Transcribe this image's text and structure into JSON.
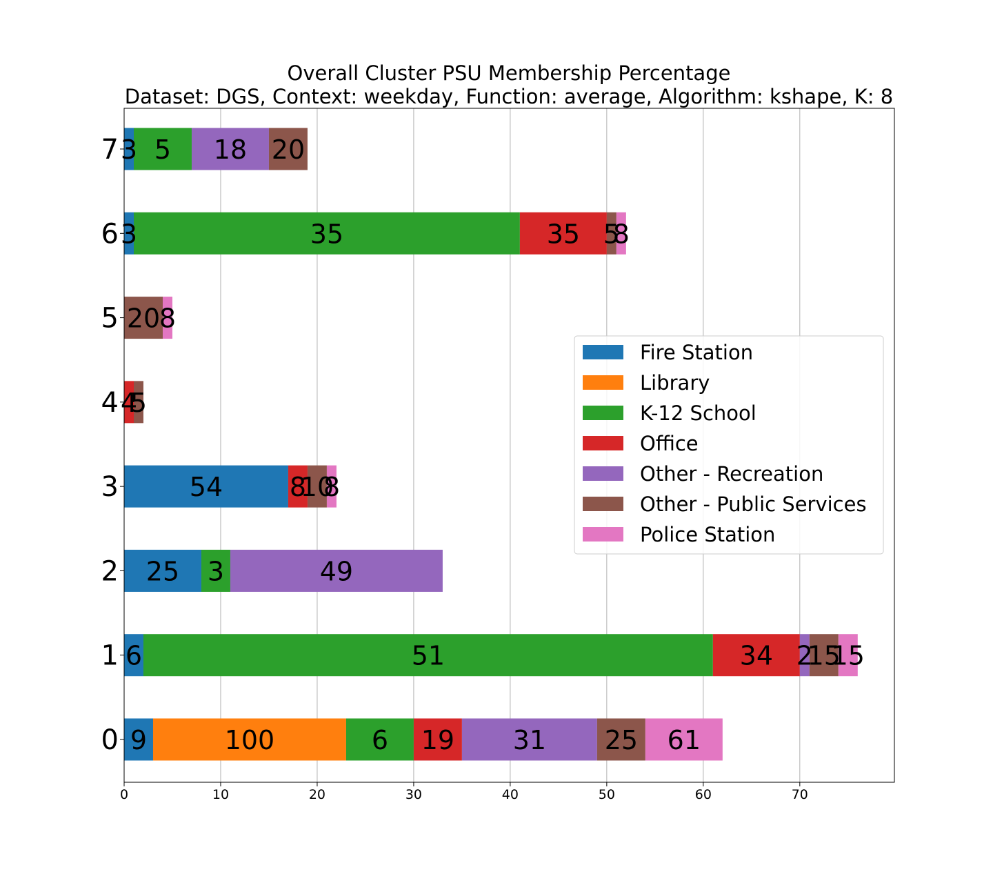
{
  "chart_data": {
    "type": "bar",
    "orientation": "horizontal",
    "stacked": true,
    "title": "Overall Cluster  PSU Membership Percentage",
    "subtitle": "Dataset: DGS, Context: weekday, Function: average, Algorithm: kshape, K: 8",
    "xlabel": "",
    "ylabel": "",
    "xlim": [
      0,
      79.8
    ],
    "xticks": [
      "0",
      "10",
      "20",
      "30",
      "40",
      "50",
      "60",
      "70"
    ],
    "grid": "x",
    "legend_position": "center-right",
    "categories": [
      "0",
      "1",
      "2",
      "3",
      "4",
      "5",
      "6",
      "7"
    ],
    "series": [
      {
        "name": "Fire Station",
        "color": "#1f77b4",
        "values": [
          3,
          2,
          8,
          17,
          0,
          0,
          1,
          1
        ],
        "labels": [
          "9",
          "6",
          "25",
          "54",
          "",
          "",
          "3",
          "3"
        ]
      },
      {
        "name": "Library",
        "color": "#ff7f0e",
        "values": [
          20,
          0,
          0,
          0,
          0,
          0,
          0,
          0
        ],
        "labels": [
          "100",
          "",
          "",
          "",
          "",
          "",
          "",
          ""
        ]
      },
      {
        "name": "K-12 School",
        "color": "#2ca02c",
        "values": [
          7,
          59,
          3,
          0,
          0,
          0,
          40,
          6
        ],
        "labels": [
          "6",
          "51",
          "3",
          "",
          "",
          "",
          "35",
          "5"
        ]
      },
      {
        "name": "Office",
        "color": "#d62728",
        "values": [
          5,
          9,
          0,
          2,
          1,
          0,
          9,
          0
        ],
        "labels": [
          "19",
          "34",
          "",
          "8",
          "4",
          "",
          "35",
          ""
        ]
      },
      {
        "name": "Other - Recreation",
        "color": "#9467bd",
        "values": [
          14,
          1,
          22,
          0,
          0,
          0,
          0,
          8
        ],
        "labels": [
          "31",
          "2",
          "49",
          "",
          "",
          "",
          "",
          "18"
        ]
      },
      {
        "name": "Other - Public Services",
        "color": "#8c564b",
        "values": [
          5,
          3,
          0,
          2,
          1,
          4,
          1,
          4
        ],
        "labels": [
          "25",
          "15",
          "",
          "10",
          "5",
          "20",
          "5",
          "20"
        ]
      },
      {
        "name": "Police Station",
        "color": "#e377c2",
        "values": [
          8,
          2,
          0,
          1,
          0,
          1,
          1,
          0
        ],
        "labels": [
          "61",
          "15",
          "",
          "8",
          "",
          "8",
          "8",
          ""
        ]
      }
    ]
  }
}
